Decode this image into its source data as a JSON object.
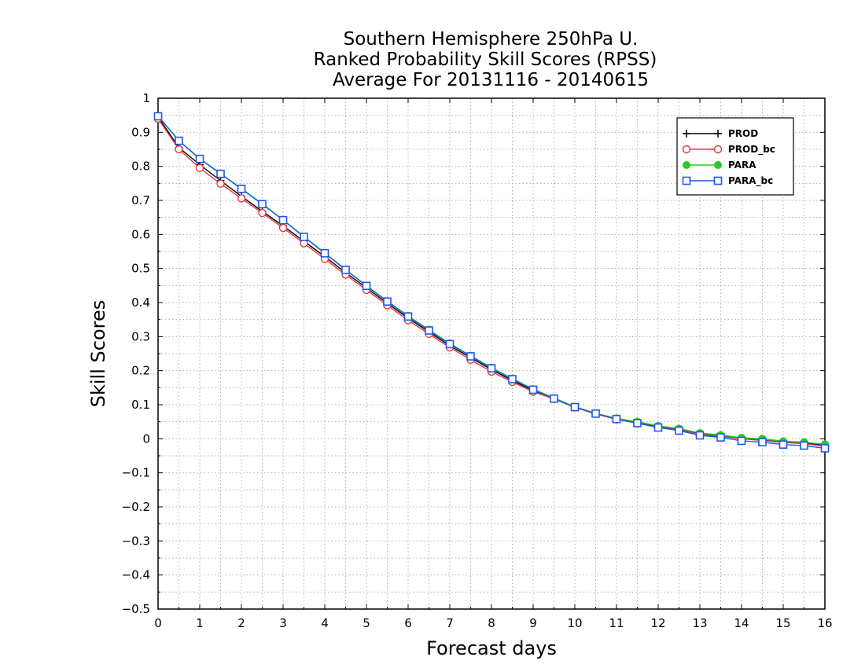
{
  "chart_data": {
    "type": "line",
    "title_lines": [
      "Southern Hemisphere 250hPa U.",
      "Ranked Probability Skill Scores (RPSS)",
      "Average For 20131116 - 20140615"
    ],
    "xlabel": "Forecast days",
    "ylabel": "Skill Scores",
    "xlim": [
      0,
      16
    ],
    "ylim": [
      -0.5,
      1
    ],
    "x_ticks": [
      "0",
      "1",
      "2",
      "3",
      "4",
      "5",
      "6",
      "7",
      "8",
      "9",
      "10",
      "11",
      "12",
      "13",
      "14",
      "15",
      "16"
    ],
    "y_ticks": [
      "−0.5",
      "−0.4",
      "−0.3",
      "−0.2",
      "−0.1",
      "0",
      "0.1",
      "0.2",
      "0.3",
      "0.4",
      "0.5",
      "0.6",
      "0.7",
      "0.8",
      "0.9",
      "1"
    ],
    "grid": true,
    "legend_position": "top-right",
    "x": [
      0,
      0.5,
      1,
      1.5,
      2,
      2.5,
      3,
      3.5,
      4,
      4.5,
      5,
      5.5,
      6,
      6.5,
      7,
      7.5,
      8,
      8.5,
      9,
      9.5,
      10,
      10.5,
      11,
      11.5,
      12,
      12.5,
      13,
      13.5,
      14,
      14.5,
      15,
      15.5,
      16
    ],
    "series": [
      {
        "name": "PROD",
        "color": "#000000",
        "marker": "plus",
        "values": [
          0.945,
          0.855,
          0.805,
          0.758,
          0.712,
          0.668,
          0.625,
          0.58,
          0.535,
          0.488,
          0.443,
          0.398,
          0.354,
          0.314,
          0.273,
          0.238,
          0.203,
          0.171,
          0.142,
          0.118,
          0.093,
          0.074,
          0.058,
          0.047,
          0.035,
          0.027,
          0.014,
          0.008,
          0.001,
          -0.004,
          -0.01,
          -0.012,
          -0.02
        ]
      },
      {
        "name": "PROD_bc",
        "color": "#e8383d",
        "marker": "circle",
        "values": [
          0.94,
          0.85,
          0.795,
          0.749,
          0.706,
          0.663,
          0.619,
          0.574,
          0.528,
          0.482,
          0.437,
          0.392,
          0.348,
          0.308,
          0.268,
          0.232,
          0.197,
          0.167,
          0.138,
          0.117,
          0.092,
          0.073,
          0.057,
          0.046,
          0.034,
          0.026,
          0.013,
          0.007,
          0.0,
          -0.005,
          -0.011,
          -0.014,
          -0.022
        ]
      },
      {
        "name": "PARA",
        "color": "#22cc22",
        "marker": "filled-circle",
        "values": [
          0.948,
          0.876,
          0.823,
          0.779,
          0.735,
          0.69,
          0.643,
          0.594,
          0.546,
          0.497,
          0.45,
          0.404,
          0.361,
          0.32,
          0.28,
          0.244,
          0.209,
          0.177,
          0.146,
          0.12,
          0.094,
          0.075,
          0.06,
          0.05,
          0.038,
          0.03,
          0.017,
          0.011,
          0.003,
          0.0,
          -0.007,
          -0.01,
          -0.016
        ]
      },
      {
        "name": "PARA_bc",
        "color": "#2255ee",
        "marker": "square",
        "values": [
          0.947,
          0.875,
          0.822,
          0.778,
          0.734,
          0.689,
          0.642,
          0.593,
          0.545,
          0.496,
          0.449,
          0.403,
          0.359,
          0.318,
          0.278,
          0.242,
          0.207,
          0.175,
          0.144,
          0.118,
          0.093,
          0.074,
          0.058,
          0.046,
          0.033,
          0.024,
          0.01,
          0.004,
          -0.006,
          -0.01,
          -0.017,
          -0.02,
          -0.028
        ]
      }
    ]
  }
}
